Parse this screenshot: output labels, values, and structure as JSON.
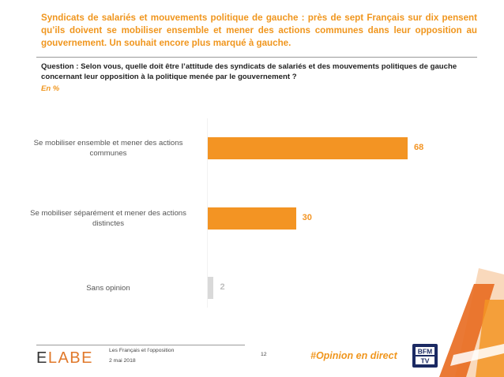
{
  "header": {
    "headline": "Syndicats de salariés et mouvements politique de gauche : près de sept Français sur dix pensent qu’ils doivent se mobiliser ensemble et mener des actions communes dans leur opposition au gouvernement. Un souhait encore plus marqué à gauche.",
    "question": "Question : Selon vous, quelle doit être l’attitude des syndicats de salariés et des mouvements politiques de gauche concernant leur opposition à la politique menée par le gouvernement ?",
    "unit": "En %"
  },
  "chart_data": {
    "type": "bar",
    "orientation": "horizontal",
    "categories": [
      "Se mobiliser ensemble et mener des actions communes",
      "Se mobiliser séparément et mener des actions distinctes",
      "Sans opinion"
    ],
    "values": [
      68,
      30,
      2
    ],
    "colors": [
      "#F39423",
      "#F39423",
      "#D9D9D9"
    ],
    "label_colors": [
      "#F39423",
      "#F39423",
      "#BFBFBF"
    ],
    "xlim": [
      0,
      100
    ],
    "grid": false
  },
  "footer": {
    "logo_first": "E",
    "logo_rest": "LABE",
    "source_line1": "Les Français et l’opposition",
    "source_line2": "2 mai 2018",
    "page_number": "12",
    "hashtag": "#Opinion en direct",
    "partner_logo": "BFM TV"
  },
  "colors": {
    "accent": "#F0961E",
    "bar": "#F39423",
    "neutral_bar": "#D9D9D9"
  }
}
